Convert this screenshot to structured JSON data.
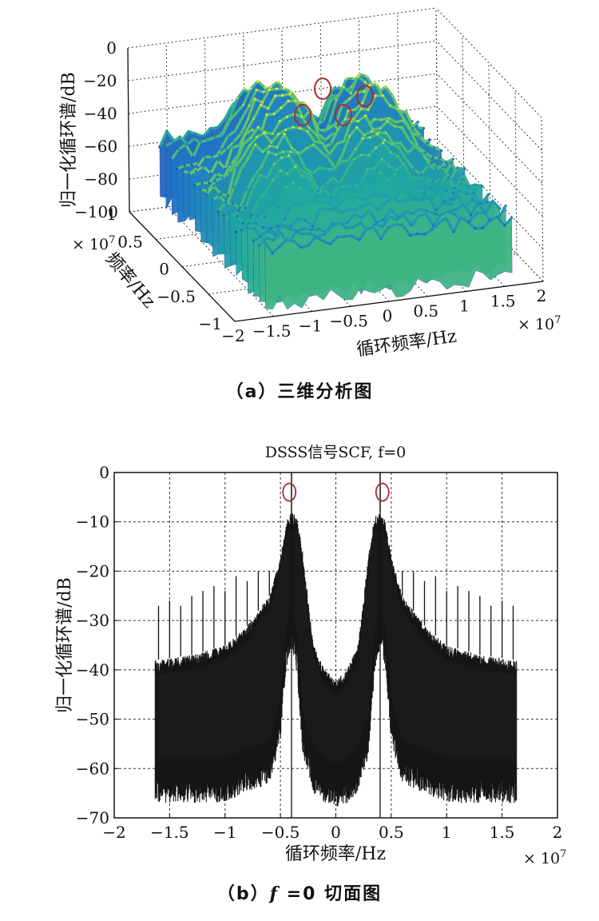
{
  "charts": {
    "a": {
      "caption": "（a）三维分析图",
      "zlabel": "归一化循环谱/dB",
      "ylabel": "频率/Hz",
      "xlabel": "循环频率/Hz",
      "multiplier": "× 10",
      "multiplier_exp": "7",
      "z_ticks": [
        "0",
        "−20",
        "−40",
        "−60",
        "−80",
        "−100"
      ],
      "y_ticks": [
        "1",
        "0.5",
        "0",
        "−0.5",
        "−1"
      ],
      "x_ticks": [
        "−2",
        "−1.5",
        "−1",
        "−0.5",
        "0",
        "0.5",
        "1",
        "1.5",
        "2"
      ]
    },
    "b": {
      "caption_prefix": "（b）",
      "caption_var": "f",
      "caption_suffix": " =0 切面图",
      "title": "DSSS信号SCF, f=0",
      "xlabel": "循环频率/Hz",
      "ylabel": "归一化循环谱/dB",
      "multiplier": "× 10",
      "multiplier_exp": "7",
      "x_ticks": [
        "−2",
        "−1.5",
        "−1",
        "−0.5",
        "0",
        "0.5",
        "1",
        "1.5",
        "2"
      ],
      "y_ticks": [
        "0",
        "−10",
        "−20",
        "−30",
        "−40",
        "−50",
        "−60",
        "−70"
      ]
    }
  },
  "chart_data": [
    {
      "type": "surface",
      "title": "",
      "x_label": "循环频率/Hz",
      "y_label": "频率/Hz",
      "z_label": "归一化循环谱/dB",
      "x_scale": "×10^7",
      "y_scale": "×10^7",
      "xlim": [
        -2,
        2
      ],
      "ylim": [
        -1,
        1
      ],
      "zlim": [
        -100,
        0
      ],
      "surface_extent": {
        "x": [
          -1.6,
          1.6
        ],
        "y": [
          -1,
          1
        ],
        "z_floor": -100,
        "z_top": -20
      },
      "colormap": [
        "#2d2f9e",
        "#1f78c8",
        "#21a9a0",
        "#5cc16a",
        "#c9d84a",
        "#f2e33a"
      ],
      "highlighted_peaks": [
        {
          "x": -0.8,
          "y": 0.0,
          "z": -30
        },
        {
          "x": -0.4,
          "y": 0.5,
          "z": -20
        },
        {
          "x": 0.4,
          "y": 0.0,
          "z": -30
        },
        {
          "x": 0.8,
          "y": 0.5,
          "z": -25
        }
      ],
      "grid": true
    },
    {
      "type": "line",
      "title": "DSSS信号SCF, f=0",
      "xlabel": "循环频率/Hz",
      "ylabel": "归一化循环谱/dB",
      "x_scale": "×10^7",
      "xlim": [
        -2,
        2
      ],
      "ylim": [
        -70,
        0
      ],
      "grid": true,
      "data_extent": [
        -1.63,
        1.63
      ],
      "envelope": {
        "x": [
          -1.63,
          -1.3,
          -1.0,
          -0.8,
          -0.6,
          -0.5,
          -0.45,
          -0.4,
          -0.35,
          -0.3,
          -0.2,
          -0.1,
          0.0,
          0.1,
          0.2,
          0.3,
          0.35,
          0.4,
          0.45,
          0.5,
          0.6,
          0.8,
          1.0,
          1.3,
          1.63
        ],
        "upper": [
          -38,
          -37,
          -35,
          -31,
          -25,
          -17,
          -10,
          -8,
          -9,
          -16,
          -35,
          -40,
          -42,
          -40,
          -35,
          -16,
          -9,
          -8,
          -10,
          -17,
          -25,
          -31,
          -35,
          -37,
          -38
        ],
        "lower": [
          -62,
          -62,
          -62,
          -60,
          -58,
          -50,
          -35,
          -30,
          -36,
          -52,
          -60,
          -62,
          -63,
          -62,
          -60,
          -52,
          -36,
          -30,
          -35,
          -50,
          -58,
          -60,
          -62,
          -62,
          -62
        ]
      },
      "spikes": {
        "x": [
          -1.6,
          -1.5,
          -1.4,
          -1.3,
          -1.2,
          -1.1,
          -1.0,
          -0.9,
          -0.8,
          -0.7,
          -0.6,
          -0.4,
          0.4,
          0.6,
          0.7,
          0.8,
          0.9,
          1.0,
          1.1,
          1.2,
          1.3,
          1.4,
          1.5,
          1.6
        ],
        "y": [
          -27,
          -26,
          -27,
          -25,
          -24,
          -23,
          -24,
          -21,
          -22,
          -20,
          -20,
          0,
          0,
          -20,
          -20,
          -22,
          -21,
          -24,
          -23,
          -24,
          -25,
          -27,
          -26,
          -27
        ]
      },
      "highlighted_peaks": [
        {
          "x": -0.42,
          "y": -4
        },
        {
          "x": 0.42,
          "y": -4
        }
      ]
    }
  ]
}
